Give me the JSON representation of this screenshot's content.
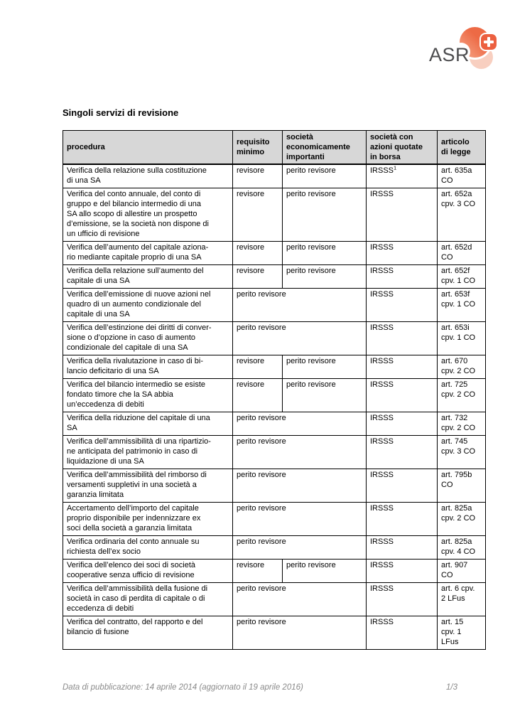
{
  "logo": {
    "text": "ASR",
    "accent_color": "#ed6a45",
    "pale_color": "#f8cfc0",
    "cross_icon": "swiss-cross"
  },
  "title": "Singoli servizi di revisione",
  "table": {
    "headers": [
      "procedura",
      "requisito\nminimo",
      "società\neconomicamente\nimportanti",
      "società con\nazioni quotate\nin borsa",
      "articolo\ndi legge"
    ],
    "rows": [
      {
        "procedura": "Verifica della relazione sulla costituzione\ndi una SA",
        "requisito": "revisore",
        "perito": "perito revisore",
        "span": false,
        "quotate": "IRSSS",
        "quotate_sup": "1",
        "articolo": "art. 635a\nCO"
      },
      {
        "procedura": "Verifica del conto annuale, del conto di\ngruppo e del bilancio intermedio di una\nSA allo scopo di allestire un prospetto\nd’emissione, se la società non dispone di\nun ufficio di revisione",
        "requisito": "revisore",
        "perito": "perito revisore",
        "span": false,
        "quotate": "IRSSS",
        "articolo": "art. 652a\ncpv. 3 CO"
      },
      {
        "procedura": "Verifica dell’aumento del capitale aziona-\nrio mediante capitale proprio di una SA",
        "requisito": "revisore",
        "perito": "perito revisore",
        "span": false,
        "quotate": "IRSSS",
        "articolo": "art. 652d\nCO"
      },
      {
        "procedura": "Verifica della relazione sull’aumento del\ncapitale di una SA",
        "requisito": "revisore",
        "perito": "perito revisore",
        "span": false,
        "quotate": "IRSSS",
        "articolo": "art. 652f\ncpv. 1 CO"
      },
      {
        "procedura": "Verifica dell’emissione di nuove azioni nel\nquadro di un aumento condizionale del\ncapitale di una SA",
        "requisito": "perito revisore",
        "span": true,
        "quotate": "IRSSS",
        "articolo": "art. 653f\ncpv. 1 CO"
      },
      {
        "procedura": "Verifica dell’estinzione dei diritti di conver-\nsione o d’opzione in caso di aumento\ncondizionale del capitale di una SA",
        "requisito": "perito revisore",
        "span": true,
        "quotate": "IRSSS",
        "articolo": "art. 653i\ncpv. 1 CO"
      },
      {
        "procedura": "Verifica della rivalutazione in caso di bi-\nlancio deficitario di una SA",
        "requisito": "revisore",
        "perito": "perito revisore",
        "span": false,
        "quotate": "IRSSS",
        "articolo": "art. 670\ncpv. 2 CO"
      },
      {
        "procedura": "Verifica del bilancio intermedio se esiste\nfondato timore che la SA abbia\nun’eccedenza di debiti",
        "requisito": "revisore",
        "perito": "perito revisore",
        "span": false,
        "quotate": "IRSSS",
        "articolo": "art. 725\ncpv. 2 CO"
      },
      {
        "procedura": "Verifica della riduzione del capitale di una\nSA",
        "requisito": "perito revisore",
        "span": true,
        "quotate": "IRSSS",
        "articolo": "art. 732\ncpv. 2 CO"
      },
      {
        "procedura": "Verifica dell’ammissibilità di una ripartizio-\nne anticipata del patrimonio in caso di\nliquidazione di una SA",
        "requisito": "perito revisore",
        "span": true,
        "quotate": "IRSSS",
        "articolo": "art. 745\ncpv. 3 CO"
      },
      {
        "procedura": "Verifica dell’ammissibilità del rimborso di\nversamenti suppletivi in una società a\ngaranzia limitata",
        "requisito": "perito revisore",
        "span": true,
        "quotate": "IRSSS",
        "articolo": "art. 795b\nCO"
      },
      {
        "procedura": "Accertamento dell’importo del capitale\nproprio disponibile per indennizzare ex\nsoci della società a garanzia limitata",
        "requisito": "perito revisore",
        "span": true,
        "quotate": "IRSSS",
        "articolo": "art. 825a\ncpv. 2 CO"
      },
      {
        "procedura": "Verifica ordinaria del conto annuale su\nrichiesta dell’ex socio",
        "requisito": "perito revisore",
        "span": true,
        "quotate": "IRSSS",
        "articolo": "art. 825a\ncpv. 4 CO"
      },
      {
        "procedura": "Verifica dell’elenco dei soci di società\ncooperative senza ufficio di revisione",
        "requisito": "revisore",
        "perito": "perito revisore",
        "span": false,
        "quotate": "IRSSS",
        "articolo": "art. 907\nCO"
      },
      {
        "procedura": "Verifica dell’ammissibilità della fusione di\nsocietà in caso di perdita di capitale o di\neccedenza di debiti",
        "requisito": "perito revisore",
        "span": true,
        "quotate": "IRSSS",
        "articolo": "art. 6 cpv.\n2 LFus"
      },
      {
        "procedura": "Verifica del contratto, del rapporto e del\nbilancio di fusione",
        "requisito": "perito revisore",
        "span": true,
        "quotate": "IRSSS",
        "articolo": "art. 15\ncpv. 1\nLFus"
      }
    ]
  },
  "footer": {
    "left": "Data di pubblicazione: 14 aprile 2014 (aggiornato il 19 aprile 2016)",
    "page": "1/3"
  }
}
